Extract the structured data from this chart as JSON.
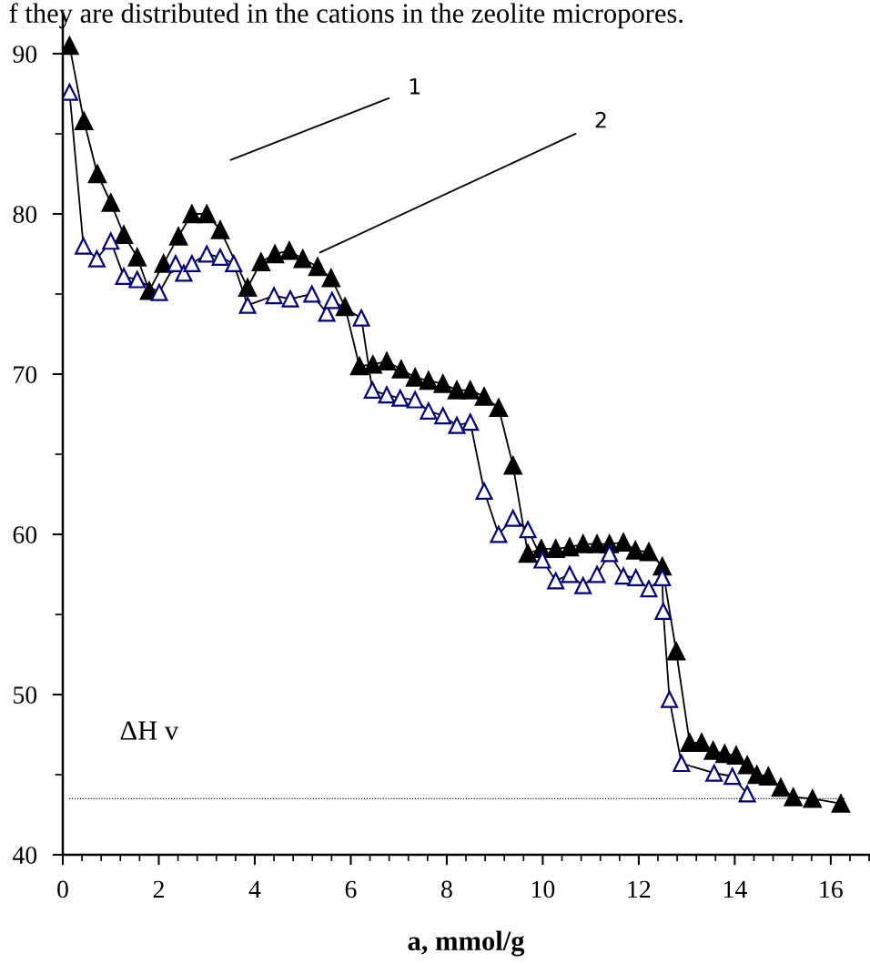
{
  "chart_data": {
    "type": "line",
    "xlabel": "a, mmol/g",
    "x": [
      0.14,
      0.44,
      0.72,
      1.0,
      1.27,
      1.55,
      1.8,
      2.1,
      2.41,
      2.69,
      3.0,
      3.28,
      3.85,
      4.13,
      4.42,
      4.72,
      5.0,
      5.31,
      5.59,
      5.88,
      6.18,
      6.46,
      6.75,
      7.05,
      7.34,
      7.62,
      7.92,
      8.21,
      8.49,
      8.78,
      9.08,
      9.38,
      9.69,
      9.97,
      10.27,
      10.56,
      10.84,
      11.13,
      11.39,
      11.68,
      11.93,
      12.21,
      12.49,
      12.78,
      13.06,
      13.31,
      13.55,
      13.79,
      14.03,
      14.26,
      14.46,
      14.7,
      14.96,
      15.22,
      15.62,
      16.21
    ],
    "series": [
      {
        "color": "#000000",
        "values": [
          90.5,
          85.8,
          82.5,
          80.7,
          78.7,
          77.3,
          75.2,
          76.9,
          78.6,
          80.0,
          80.0,
          79.0,
          75.4,
          77.0,
          77.5,
          77.7,
          77.2,
          76.7,
          76.0,
          74.2,
          70.5,
          70.6,
          70.8,
          70.3,
          69.8,
          69.6,
          69.4,
          69.0,
          69.0,
          68.6,
          67.9,
          64.3,
          58.8,
          59.1,
          59.1,
          59.2,
          59.4,
          59.4,
          59.4,
          59.5,
          59.0,
          58.9,
          58.0,
          52.7,
          47.0,
          47.0,
          46.5,
          46.3,
          46.2,
          45.6,
          45.0,
          44.9,
          44.2,
          43.6,
          43.5,
          43.2
        ]
      },
      {
        "color": "#000080",
        "x": [
          0.14,
          0.43,
          0.71,
          1.0,
          1.27,
          1.55,
          2.01,
          2.35,
          2.52,
          2.69,
          3.0,
          3.28,
          3.56,
          3.85,
          4.4,
          4.74,
          5.19,
          5.5,
          5.61,
          6.22,
          6.45,
          6.75,
          7.03,
          7.34,
          7.62,
          7.92,
          8.21,
          8.49,
          8.78,
          9.08,
          9.38,
          9.69,
          9.99,
          10.27,
          10.56,
          10.84,
          11.13,
          11.39,
          11.68,
          11.94,
          12.21,
          12.49,
          12.51,
          12.64,
          12.89,
          13.57,
          13.95,
          14.26
        ],
        "values": [
          87.6,
          78.0,
          77.2,
          78.3,
          76.1,
          75.9,
          75.1,
          76.9,
          76.3,
          76.9,
          77.5,
          77.3,
          76.9,
          74.3,
          74.9,
          74.7,
          75.0,
          73.8,
          74.6,
          73.5,
          69.0,
          68.7,
          68.5,
          68.4,
          67.7,
          67.4,
          66.8,
          67.0,
          62.7,
          60.0,
          61.0,
          60.3,
          58.4,
          57.1,
          57.5,
          56.8,
          57.5,
          58.8,
          57.4,
          57.3,
          56.6,
          57.3,
          55.2,
          49.7,
          45.7,
          45.1,
          44.9,
          43.8
        ]
      }
    ],
    "xlim": [
      0,
      16.8
    ],
    "xticks": [
      0,
      2,
      4,
      6,
      8,
      10,
      12,
      14,
      16
    ],
    "ylim": [
      40,
      92.5
    ],
    "yticks": [
      40,
      50,
      60,
      70,
      80,
      90
    ],
    "marker": "triangle",
    "grid": false,
    "legend": false,
    "ref_lines": [
      {
        "axis": "y",
        "value": 43.5,
        "label": "ΔH v",
        "color": "#000000",
        "line_style": "dotted"
      }
    ],
    "annotations": [
      "1",
      "2",
      "f they are distributed in the cations in the zeolite micropores."
    ]
  }
}
